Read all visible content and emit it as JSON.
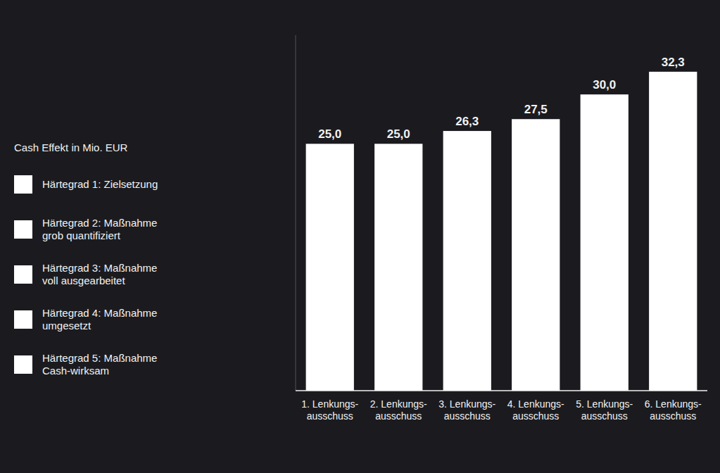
{
  "chart_data": {
    "type": "bar",
    "y_label": "Cash Effekt in Mio. EUR",
    "categories": [
      "1. Lenkungs-\nausschuss",
      "2. Lenkungs-\nausschuss",
      "3. Lenkungs-\nausschuss",
      "4. Lenkungs-\nausschuss",
      "5. Lenkungs-\nausschuss",
      "6. Lenkungs-\nausschuss"
    ],
    "values": [
      25.0,
      25.0,
      26.3,
      27.5,
      30.0,
      32.3
    ],
    "value_labels": [
      "25,0",
      "25,0",
      "26,3",
      "27,5",
      "30,0",
      "32,3"
    ],
    "color": "#ffffff",
    "ylim": [
      0,
      36
    ],
    "data_labels": true,
    "tick_labels": "x",
    "grid": false,
    "annotations": [
      "Härtegrad 1: Zielsetzung",
      "Härtegrad 2: Maßnahme\ngrob quantifiziert",
      "Härtegrad 3: Maßnahme\nvoll ausgearbeitet",
      "Härtegrad 4: Maßnahme\numgesetzt",
      "Härtegrad 5: Maßnahme\nCash-wirksam"
    ]
  }
}
